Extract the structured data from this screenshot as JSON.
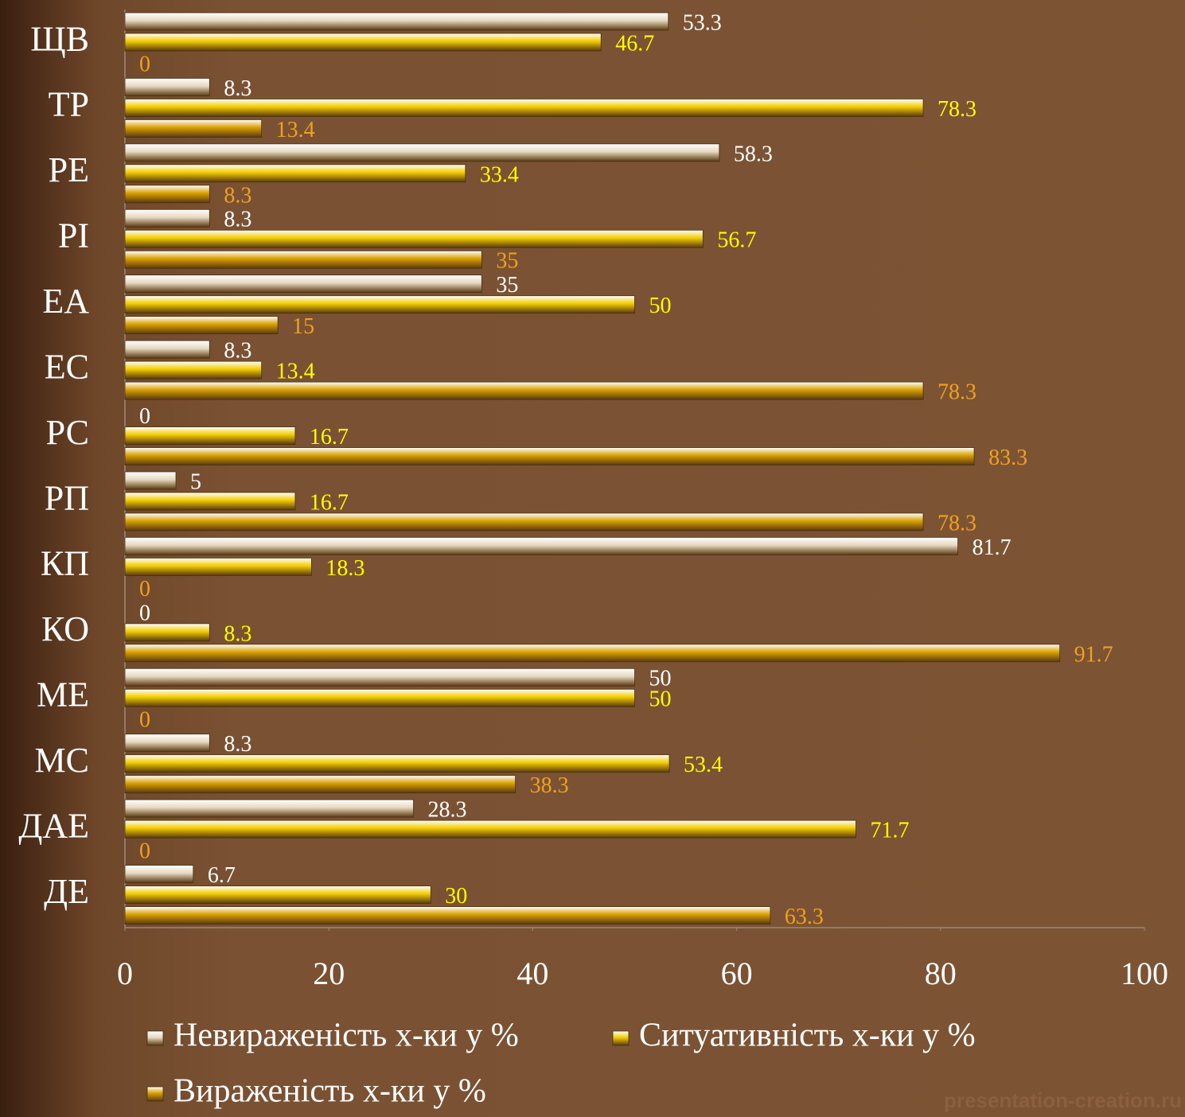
{
  "chart_data": {
    "type": "bar",
    "orientation": "horizontal",
    "categories": [
      "ЩВ",
      "ТР",
      "РЕ",
      "РІ",
      "ЕА",
      "ЕС",
      "РС",
      "РП",
      "КП",
      "КО",
      "МЕ",
      "МС",
      "ДАЕ",
      "ДЕ"
    ],
    "series": [
      {
        "name": "Невираженість х-ки у %",
        "color": "#e6d8c0",
        "label_color": "#ffffff",
        "values": [
          53.3,
          8.3,
          58.3,
          8.3,
          35,
          8.3,
          0,
          5,
          81.7,
          0,
          50,
          8.3,
          28.3,
          6.7
        ]
      },
      {
        "name": "Ситуативність х-ки у %",
        "color": "#f2cc00",
        "label_color": "#ffff00",
        "values": [
          46.7,
          78.3,
          33.4,
          56.7,
          50,
          13.4,
          16.7,
          16.7,
          18.3,
          8.3,
          50,
          53.4,
          71.7,
          30
        ]
      },
      {
        "name": "Вираженість х-ки у %",
        "color": "#d9a000",
        "label_color": "#f0a020",
        "values": [
          0,
          13.4,
          8.3,
          35,
          15,
          78.3,
          83.3,
          78.3,
          0,
          91.7,
          0,
          38.3,
          0,
          63.3
        ]
      }
    ],
    "xlim": [
      0,
      100
    ],
    "xticks": [
      0,
      20,
      40,
      60,
      80,
      100
    ],
    "watermark": "presentation-creation.ru"
  }
}
